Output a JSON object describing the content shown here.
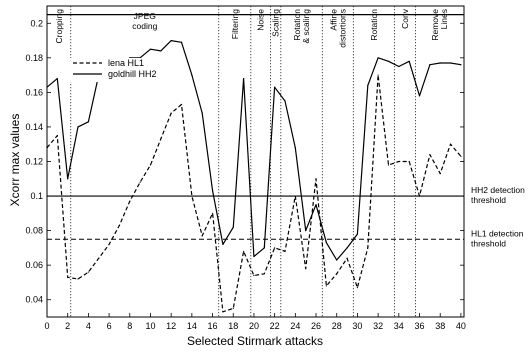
{
  "chart_data": {
    "type": "line",
    "xlabel": "Selected Stirmark attacks",
    "ylabel": "Xcorr max values",
    "xlim": [
      0,
      40.3
    ],
    "ylim": [
      0.03,
      0.21
    ],
    "xticks": [
      0,
      2,
      4,
      6,
      8,
      10,
      12,
      14,
      16,
      18,
      20,
      22,
      24,
      26,
      28,
      30,
      32,
      34,
      36,
      38,
      40
    ],
    "yticks": [
      0.04,
      0.06,
      0.08,
      0.1,
      0.12,
      0.14,
      0.16,
      0.18,
      0.2
    ],
    "ytick_labels": [
      "0.04",
      "0.06",
      "0.08",
      "0.1",
      "0.12",
      "0.14",
      "0.16",
      "0.18",
      "0.2"
    ],
    "x": [
      0,
      1,
      2,
      3,
      4,
      5,
      6,
      7,
      8,
      9,
      10,
      11,
      12,
      13,
      14,
      15,
      16,
      17,
      18,
      19,
      20,
      21,
      22,
      23,
      24,
      25,
      26,
      27,
      28,
      29,
      30,
      31,
      32,
      33,
      34,
      35,
      36,
      37,
      38,
      39,
      40
    ],
    "series": [
      {
        "name": "lena HL1",
        "style": "dashed",
        "values": [
          0.128,
          0.135,
          0.053,
          0.052,
          0.056,
          0.064,
          0.072,
          0.083,
          0.097,
          0.108,
          0.118,
          0.133,
          0.148,
          0.153,
          0.1,
          0.077,
          0.09,
          0.033,
          0.035,
          0.068,
          0.054,
          0.055,
          0.07,
          0.068,
          0.1,
          0.058,
          0.11,
          0.048,
          0.055,
          0.064,
          0.047,
          0.07,
          0.17,
          0.118,
          0.12,
          0.12,
          0.1,
          0.124,
          0.113,
          0.13,
          0.123
        ]
      },
      {
        "name": "goldhill HH2",
        "style": "solid",
        "values": [
          0.163,
          0.168,
          0.11,
          0.14,
          0.143,
          0.17,
          0.17,
          0.175,
          0.18,
          0.18,
          0.185,
          0.184,
          0.19,
          0.189,
          0.17,
          0.148,
          0.103,
          0.072,
          0.082,
          0.168,
          0.065,
          0.07,
          0.163,
          0.155,
          0.128,
          0.08,
          0.095,
          0.073,
          0.063,
          0.07,
          0.078,
          0.164,
          0.18,
          0.178,
          0.175,
          0.178,
          0.158,
          0.176,
          0.177,
          0.177,
          0.176
        ]
      }
    ],
    "hlines": [
      {
        "y": 0.1,
        "style": "solid",
        "label_lines": [
          "HH2 detection",
          "threshold"
        ]
      },
      {
        "y": 0.075,
        "style": "dashed",
        "label_lines": [
          "HL1 detection",
          "threshold"
        ]
      }
    ],
    "top_band_y": 0.205,
    "regions": [
      {
        "start": 0,
        "end": 2.3,
        "label_lines": [
          "Cropping"
        ],
        "rotate": true
      },
      {
        "start": 2.3,
        "end": 16.6,
        "label_lines": [
          "JPEG",
          "coding"
        ],
        "rotate": false
      },
      {
        "start": 16.6,
        "end": 19.7,
        "label_lines": [
          "Filtering"
        ],
        "rotate": true
      },
      {
        "start": 19.7,
        "end": 21.6,
        "label_lines": [
          "Noise"
        ],
        "rotate": true
      },
      {
        "start": 21.6,
        "end": 22.6,
        "label_lines": [
          "Scaling"
        ],
        "rotate": true
      },
      {
        "start": 22.6,
        "end": 26.6,
        "label_lines": [
          "Rotation",
          "& scaling"
        ],
        "rotate": true
      },
      {
        "start": 26.6,
        "end": 29.6,
        "label_lines": [
          "Affine",
          "distortions"
        ],
        "rotate": true
      },
      {
        "start": 29.6,
        "end": 33.6,
        "label_lines": [
          "Rotation"
        ],
        "rotate": true
      },
      {
        "start": 33.6,
        "end": 35.6,
        "label_lines": [
          "Conv"
        ],
        "rotate": true
      },
      {
        "start": 35.6,
        "end": 40.3,
        "label_lines": [
          "Remove",
          "Lines"
        ],
        "rotate": true
      }
    ],
    "legend_position": "top-left",
    "grid": false
  }
}
